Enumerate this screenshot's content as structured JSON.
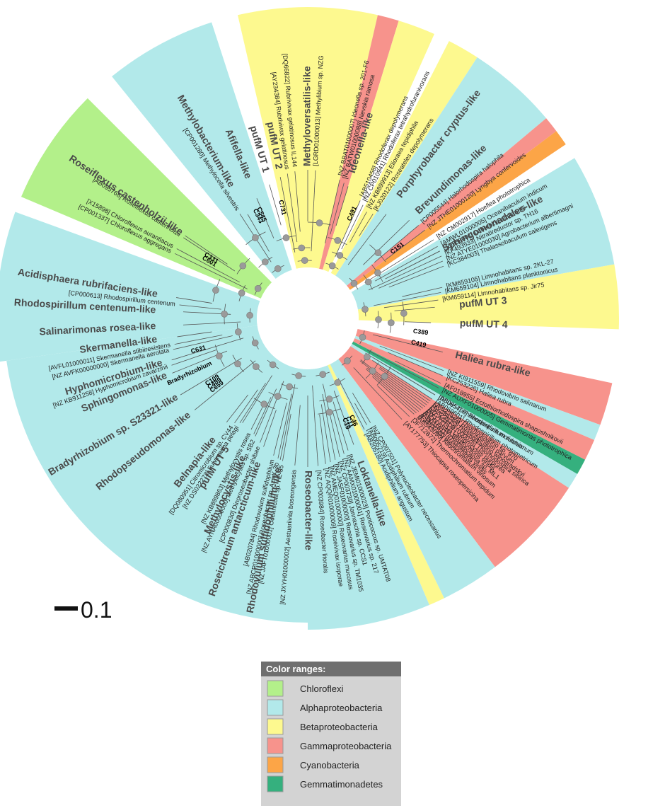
{
  "scale": {
    "label": "0.1"
  },
  "legend": {
    "title": "Color ranges:",
    "items": [
      {
        "label": "Chloroflexi",
        "color": "#b3f08a"
      },
      {
        "label": "Alphaproteobacteria",
        "color": "#b2e9ea"
      },
      {
        "label": "Betaproteobacteria",
        "color": "#fdf98f"
      },
      {
        "label": "Gammaproteobacteria",
        "color": "#f7938c"
      },
      {
        "label": "Cyanobacteria",
        "color": "#fca547"
      },
      {
        "label": "Gemmatimonadetes",
        "color": "#35b07e"
      }
    ]
  },
  "sectors": [
    {
      "group": "Alphaproteobacteria",
      "start": 90,
      "end": 172,
      "color": "#b2e9ea"
    },
    {
      "group": "Alphaproteobacteria",
      "start": 172,
      "end": 200,
      "color": "#b2e9ea"
    },
    {
      "group": "Chloroflexi",
      "start": 203,
      "end": 225,
      "color": "#b3f08a"
    },
    {
      "group": "Alphaproteobacteria",
      "start": 231,
      "end": 252,
      "color": "#b2e9ea"
    },
    {
      "group": "Betaproteobacteria",
      "start": 257,
      "end": 283,
      "color": "#fdf98f"
    },
    {
      "group": "Gammaproteobacteria",
      "start": 283,
      "end": 287,
      "color": "#f7938c"
    },
    {
      "group": "Betaproteobacteria",
      "start": 287,
      "end": 294,
      "color": "#fdf98f"
    },
    {
      "group": "Betaproteobacteria",
      "start": 297,
      "end": 303,
      "color": "#fdf98f"
    },
    {
      "group": "Alphaproteobacteria",
      "start": 303,
      "end": 320,
      "color": "#b2e9ea"
    },
    {
      "group": "Gammaproteobacteria",
      "start": 320,
      "end": 323,
      "color": "#f7938c"
    },
    {
      "group": "Cyanobacteria",
      "start": 323,
      "end": 326,
      "color": "#fca547"
    },
    {
      "group": "Alphaproteobacteria",
      "start": 329,
      "end": 350,
      "color": "#b2e9ea"
    },
    {
      "group": "Betaproteobacteria",
      "start": 350,
      "end": 362,
      "color": "#fdf98f"
    },
    {
      "group": "Gammaproteobacteria",
      "start": 372,
      "end": 380,
      "color": "#f7938c"
    },
    {
      "group": "Alphaproteobacteria",
      "start": 380,
      "end": 383,
      "color": "#b2e9ea"
    },
    {
      "group": "Gammaproteobacteria",
      "start": 383,
      "end": 387,
      "color": "#f7938c"
    },
    {
      "group": "Gemmatimonadetes",
      "start": 387,
      "end": 390,
      "color": "#35b07e"
    },
    {
      "group": "Alphaproteobacteria",
      "start": 390,
      "end": 393,
      "color": "#b2e9ea"
    },
    {
      "group": "Gammaproteobacteria",
      "start": 393,
      "end": 413,
      "color": "#f7938c"
    },
    {
      "group": "Alphaproteobacteria",
      "start": 413,
      "end": 424,
      "color": "#b2e9ea"
    },
    {
      "group": "Betaproteobacteria",
      "start": 424,
      "end": 427,
      "color": "#fdf98f"
    },
    {
      "group": "Alphaproteobacteria",
      "start": 427,
      "end": 450,
      "color": "#b2e9ea"
    }
  ],
  "clades": [
    {
      "text": "Acidisphaera rubrifaciens-like",
      "angle": 189
    },
    {
      "text": "Rhodospirillum centenum-like",
      "angle": 183
    },
    {
      "text": "Salinarimonas rosea-like",
      "angle": 177
    },
    {
      "text": "Skermanella-like",
      "angle": 172
    },
    {
      "text": "Hyphomicrobium-like",
      "angle": 163
    },
    {
      "text": "Sphingomonas-like",
      "angle": 158
    },
    {
      "text": "Bradyrhizobium sp. S23321-like",
      "angle": 149
    },
    {
      "text": "Rhodopseudomonas-like",
      "angle": 141
    },
    {
      "text": "Belnapia-like",
      "angle": 128
    },
    {
      "text": "pufM UT 5",
      "angle": 122
    },
    {
      "text": "Methylocystis-like",
      "angle": 115
    },
    {
      "text": "Roseicitreum antarcticum-like",
      "angle": 109
    },
    {
      "text": "Rhodovulum sulfidophilum-like",
      "angle": 101
    },
    {
      "text": "Roseobacter-like",
      "angle": 90
    },
    {
      "text": "Loktanella-like",
      "angle": 70
    },
    {
      "text": "Roseiflexus castenholzii-like",
      "angle": 214
    },
    {
      "text": "Methylobacterium-like",
      "angle": 240
    },
    {
      "text": "Afifella-like",
      "angle": 247
    },
    {
      "text": "pufM UT 1",
      "angle": 254
    },
    {
      "text": "pufM UT 2",
      "angle": 259
    },
    {
      "text": "Methyloversatilis-like",
      "angle": 270
    },
    {
      "text": "Ideonella-like",
      "angle": 287
    },
    {
      "text": "Porphyrobacter cryptus-like",
      "angle": 307
    },
    {
      "text": "Brevundimonas-like",
      "angle": 316
    },
    {
      "text": "Sphingomonadales-like",
      "angle": 333
    },
    {
      "text": "pufM UT 3",
      "angle": 355
    },
    {
      "text": "pufM UT 4",
      "angle": 362
    },
    {
      "text": "Haliea rubra-like",
      "angle": 374
    }
  ],
  "leaves": [
    {
      "text": "[CP000613] Rhodospirillum centenum",
      "angle": 186
    },
    {
      "text": "[AVFL01000011] Skermanella stibiiresistens",
      "angle": 169
    },
    {
      "text": "[NZ AVFK00000000] Skermanella aerolata",
      "angle": 167
    },
    {
      "text": "[NZ KB911258] Hyphomicrobium zavarzinii",
      "angle": 161
    },
    {
      "text": "[DQ080951] Citromicrobium sp. CV44",
      "angle": 125
    },
    {
      "text": "[NZ DS022272] Fulvimarina pelagi",
      "angle": 123
    },
    {
      "text": "[NZ KB899863] Methylocystis rosea",
      "angle": 117
    },
    {
      "text": "[NZ AYNA00000000] Methylocystis sp. SB2",
      "angle": 114
    },
    {
      "text": "[CP000830] Dinoroseobacter shibae",
      "angle": 111
    },
    {
      "text": "[AB020784] Rhodovulum sulfidophilum",
      "angle": 104
    },
    {
      "text": "[NZ ABCR01000000] Roseobacter sp. AzwK-3b",
      "angle": 102
    },
    {
      "text": "[NZ JAFT01000001] Oceanicola sp. HL-35",
      "angle": 100
    },
    {
      "text": "[NZ JXYH01000002] Aestuariivita boseongensis",
      "angle": 95
    },
    {
      "text": "[NZ CP003984] Roseobacter litoralis",
      "angle": 86
    },
    {
      "text": "[NZ AQQR01000009] Roseivivax isoporae",
      "angle": 83
    },
    {
      "text": "[NZ AMEQ01000000] Roseovarius mucosus",
      "angle": 81
    },
    {
      "text": "[NZ JASF01000000] Roseovarius sp. TM1035",
      "angle": 79
    },
    {
      "text": "[NZ CP003739] Jannaschia sp. CCS1",
      "angle": 77
    },
    {
      "text": "[NZ AAMX01000001] Roseovarius sp. 217",
      "angle": 75
    },
    {
      "text": "[NZ JEMI01000023] Ponticoccus sp. UMTAT08",
      "angle": 73
    },
    {
      "text": "[AB205180] Acidiphilium angustum",
      "angle": 63
    },
    {
      "text": "[AB005219] Acidiphilium rubrum",
      "angle": 61
    },
    {
      "text": "[NZ CP007501] Polynucleobacter necessarius",
      "angle": 59
    },
    {
      "text": "[FJ483785] Blastochloris viridis",
      "angle": 41
    },
    {
      "text": "[HQ008846] Blastochloris viridis",
      "angle": 39
    },
    {
      "text": "[NZ AGFD01000026] Thiorhodospira sibirica",
      "angle": 37
    },
    {
      "text": "[AY234384] Roseospirillum parvum",
      "angle": 35
    },
    {
      "text": "[AB069601] Rhodospirillum photometricum",
      "angle": 33
    },
    {
      "text": "[AB095768] Rhodospirillum rubrum",
      "angle": 31
    },
    {
      "text": "[AB095768] Roseiflexus castenholzii",
      "angle": 213
    },
    {
      "text": "[X15898] Chloroflexus aurantiacus",
      "angle": 208
    },
    {
      "text": "[CP001337] Chloroflexus aggregans",
      "angle": 206
    },
    {
      "text": "[CP001280] Methylocella silvestris",
      "angle": 237
    },
    {
      "text": "[AY234384] Rubrivivax gelatinosus",
      "angle": 262
    },
    {
      "text": "[DQ66822] Rubrivivax gelatinosus IL144",
      "angle": 265
    },
    {
      "text": "[LGRD01000013] Methylibium sp. NZG",
      "angle": 273
    },
    {
      "text": "[NZ BBAT01000007] Ideonella sp. 201-F6",
      "angle": 283
    },
    {
      "text": "[NZ BATW01000088] Nevskia ramosa",
      "angle": 285
    },
    {
      "text": "[AB510458] Rhodoferax depolymerans",
      "angle": 294
    },
    {
      "text": "[NZ CP010941] Rhodoferax tetrahydrofuranivorans",
      "angle": 296
    },
    {
      "text": "[NZ KB899913] Elioraea tepidiphila",
      "angle": 299
    },
    {
      "text": "[KJ020122] Roseateles depolymerans",
      "angle": 302
    },
    {
      "text": "[CP005544] Halorhodospira halophila",
      "angle": 320
    },
    {
      "text": "[NZ JTHE01000120] Lyngbya confervoides",
      "angle": 323
    },
    {
      "text": "[NZ CM002917] Hoeflea phototrophica",
      "angle": 328
    },
    {
      "text": "[AMWL01000005] Oceanibaculum indicum",
      "angle": 331
    },
    {
      "text": "[JQ958001] Labrenzia alexandrii",
      "angle": 333
    },
    {
      "text": "[KF493533] Nitratireductor sp. TH16",
      "angle": 335
    },
    {
      "text": "[NZ ATYE01000030] Agrobacterium albertimagni",
      "angle": 337
    },
    {
      "text": "[KC384003] Thalassobaculum salexigens",
      "angle": 339
    },
    {
      "text": "[KM659105] Limnohabitans sp. 2KL-27",
      "angle": 347
    },
    {
      "text": "[KM659104] Limnohabitans planktonicus",
      "angle": 349
    },
    {
      "text": "[KM659114] Limnohabitans sp. Jir75",
      "angle": 352
    },
    {
      "text": "[NZ KI911559] Rhodovibrio salinarum",
      "angle": 381
    },
    {
      "text": "[KC253226] Haliea rubra",
      "angle": 383
    },
    {
      "text": "[AF018955] Ectothiorhodospira shaposhnikovii",
      "angle": 386
    },
    {
      "text": "[NZ AUXF01000005] Gemmatimonas phototrophica",
      "angle": 388
    },
    {
      "text": "[D50654] Phaeospirillum molischianum",
      "angle": 391
    },
    {
      "text": "[JF523526] Thiorhodovibrio sp. 970",
      "angle": 394
    },
    {
      "text": "[JF523525] Thiorhodovibrio winogradskyi",
      "angle": 396
    },
    {
      "text": "[AY177752] Lamprocystis purpurea",
      "angle": 398
    },
    {
      "text": "[AB011811] Thiohalocapsa sp. ML1",
      "angle": 400
    },
    {
      "text": "[AB543090] Allochromatium vinosum",
      "angle": 402
    },
    {
      "text": "[JF712872] Thermochromatium tepidum",
      "angle": 404
    },
    {
      "text": "[AY177753] Thiocapsa roseopersicina",
      "angle": 407
    }
  ],
  "nodes": [
    {
      "text": "C631",
      "angle": 164
    },
    {
      "text": "Bradyrhizobium",
      "angle": 155
    },
    {
      "text": "C109",
      "angle": 147
    },
    {
      "text": "C489",
      "angle": 145
    },
    {
      "text": "C659",
      "angle": 143
    },
    {
      "text": "C19",
      "angle": 70
    },
    {
      "text": "C11",
      "angle": 68
    },
    {
      "text": "C46",
      "angle": 66
    },
    {
      "text": "C331",
      "angle": 212
    },
    {
      "text": "C601",
      "angle": 210
    },
    {
      "text": "C343",
      "angle": 244
    },
    {
      "text": "C545",
      "angle": 246
    },
    {
      "text": "C731",
      "angle": 257
    },
    {
      "text": "C491",
      "angle": 293
    },
    {
      "text": "C151",
      "angle": 322
    },
    {
      "text": "C389",
      "angle": 367
    },
    {
      "text": "C419",
      "angle": 373
    }
  ]
}
